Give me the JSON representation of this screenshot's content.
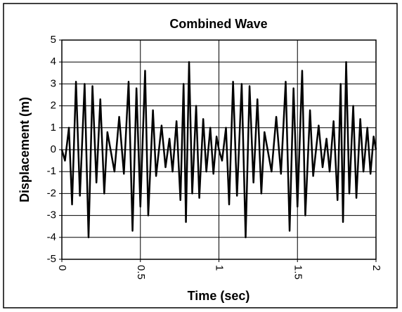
{
  "chart_data": {
    "type": "line",
    "title": "Combined Wave",
    "x_label": "Time (sec)",
    "y_label": "Displacement (m)",
    "x": [
      0,
      0.02,
      0.045,
      0.065,
      0.09,
      0.115,
      0.145,
      0.17,
      0.195,
      0.22,
      0.245,
      0.27,
      0.29,
      0.31,
      0.335,
      0.365,
      0.395,
      0.425,
      0.45,
      0.475,
      0.5,
      0.53,
      0.55,
      0.58,
      0.6,
      0.635,
      0.66,
      0.685,
      0.705,
      0.73,
      0.755,
      0.775,
      0.79,
      0.81,
      0.83,
      0.855,
      0.875,
      0.9,
      0.92,
      0.945,
      0.965,
      0.985,
      1,
      1.02,
      1.045,
      1.065,
      1.09,
      1.115,
      1.145,
      1.17,
      1.195,
      1.22,
      1.245,
      1.27,
      1.29,
      1.31,
      1.335,
      1.365,
      1.395,
      1.425,
      1.45,
      1.475,
      1.5,
      1.53,
      1.55,
      1.58,
      1.6,
      1.635,
      1.66,
      1.685,
      1.705,
      1.73,
      1.755,
      1.775,
      1.79,
      1.81,
      1.83,
      1.855,
      1.875,
      1.9,
      1.92,
      1.945,
      1.965,
      1.985,
      2
    ],
    "series": [
      {
        "color": "#000000",
        "values": [
          0,
          -0.5,
          1,
          -2.5,
          3.1,
          -2.1,
          3,
          -4,
          2.9,
          -1.5,
          2.3,
          -2,
          0.8,
          0,
          -1,
          1.5,
          -1.1,
          3.1,
          -3.7,
          2.8,
          -2.6,
          3.6,
          -3,
          1.8,
          -1.2,
          1.1,
          -0.8,
          0.5,
          -1,
          1.3,
          -2.3,
          3,
          -3.3,
          4,
          -2,
          2,
          -2.2,
          1.4,
          -1,
          1,
          -1.1,
          0.6,
          0,
          -0.5,
          1,
          -2.5,
          3.1,
          -2.1,
          3,
          -4,
          2.9,
          -1.5,
          2.3,
          -2,
          0.8,
          0,
          -1,
          1.5,
          -1.1,
          3.1,
          -3.7,
          2.8,
          -2.6,
          3.6,
          -3,
          1.8,
          -1.2,
          1.1,
          -0.8,
          0.5,
          -1,
          1.3,
          -2.3,
          3,
          -3.3,
          4,
          -2,
          2,
          -2.2,
          1.4,
          -1,
          1,
          -1.1,
          0.6,
          0
        ]
      }
    ],
    "xlim": [
      0,
      2
    ],
    "xticks": [
      0,
      0.5,
      1,
      1.5,
      2
    ],
    "ylim": [
      -5,
      5
    ],
    "yticks": [
      -5,
      -4,
      -3,
      -2,
      -1,
      0,
      1,
      2,
      3,
      4,
      5
    ],
    "grid": true
  }
}
